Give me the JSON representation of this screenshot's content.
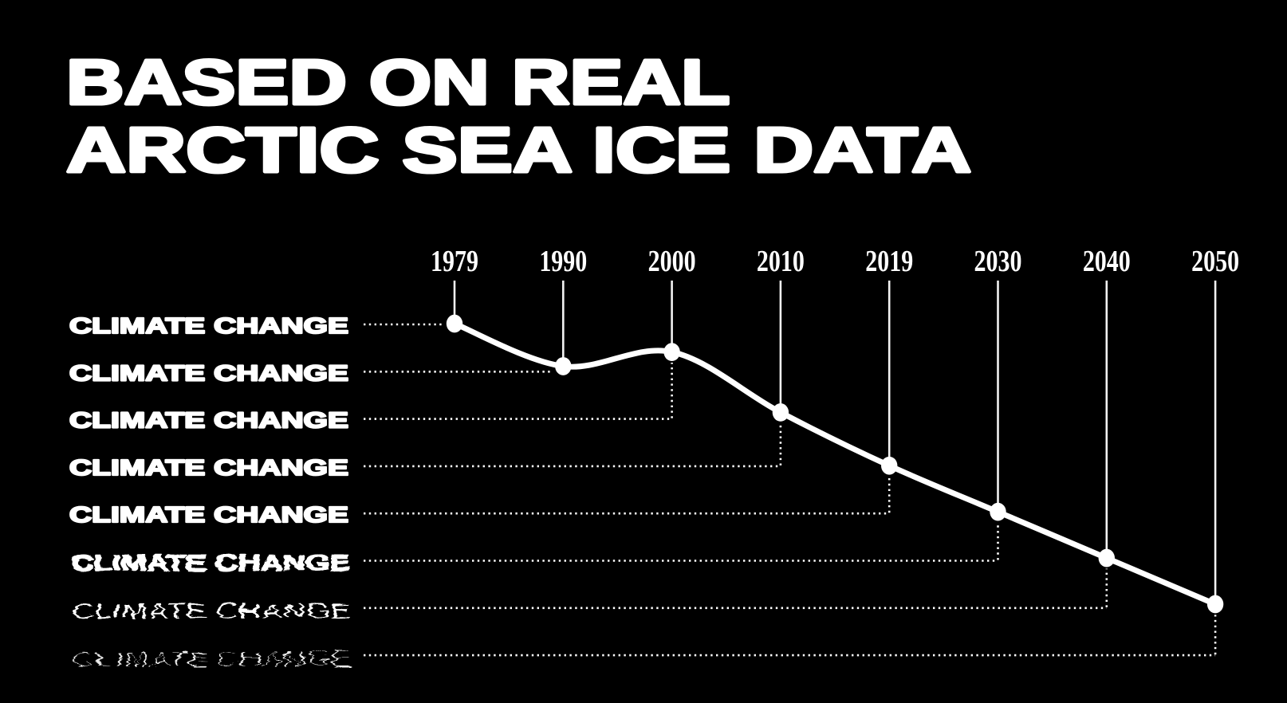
{
  "header": {
    "title_line1": "BASED ON REAL",
    "title_line2": "ARCTIC SEA ICE DATA"
  },
  "colors": {
    "background": "#000000",
    "text": "#ffffff",
    "line": "#ffffff"
  },
  "chart_data": {
    "type": "line",
    "title": "BASED ON REAL ARCTIC SEA ICE DATA",
    "categories": [
      "1979",
      "1990",
      "2000",
      "2010",
      "2019",
      "2030",
      "2040",
      "2050"
    ],
    "series": [
      {
        "name": "arctic-sea-ice-extent",
        "values": [
          100,
          88,
          92,
          75,
          60,
          47,
          34,
          21
        ]
      }
    ],
    "values_note": "relative sea-ice level, 1979 = 100, estimated from plotted point heights (no numeric axis shown)",
    "left_labels": [
      "CLIMATE CHANGE",
      "CLIMATE CHANGE",
      "CLIMATE CHANGE",
      "CLIMATE CHANGE",
      "CLIMATE CHANGE",
      "CLIMATE CHANGE",
      "CLIMATE CHANGE",
      "CLIMATE CHANGE"
    ],
    "xlabel": "",
    "ylabel": "",
    "ylim": [
      0,
      110
    ],
    "grid": false,
    "legend": false,
    "marker": "circle",
    "connector_style": "dotted"
  }
}
